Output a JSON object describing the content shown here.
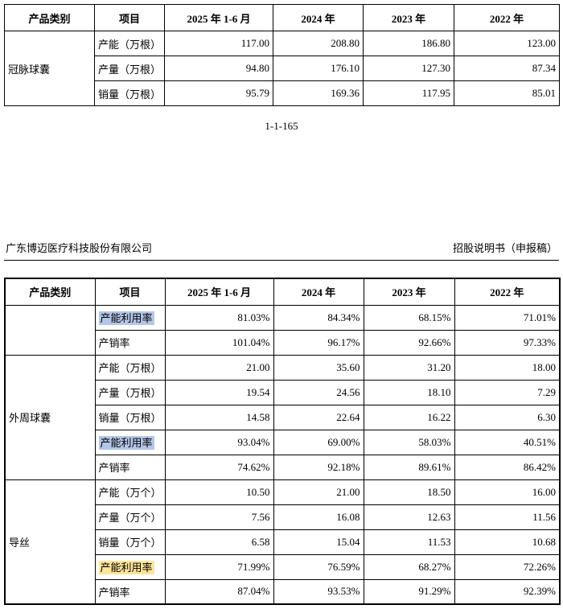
{
  "page": {
    "page_number": "1-1-165",
    "header": {
      "company": "广东博迈医疗科技股份有限公司",
      "doc_type": "招股说明书（申报稿）"
    }
  },
  "colors": {
    "highlight_blue": "#b4c6e7",
    "highlight_yellow": "#ffe599"
  },
  "tables": [
    {
      "columns": [
        "产品类别",
        "项目",
        "2025 年 1-6 月",
        "2024 年",
        "2023 年",
        "2022 年"
      ],
      "groups": [
        {
          "category": "冠脉球囊",
          "rows": [
            {
              "item": "产能（万根）",
              "values": [
                "117.00",
                "208.80",
                "186.80",
                "123.00"
              ]
            },
            {
              "item": "产量（万根）",
              "values": [
                "94.80",
                "176.10",
                "127.30",
                "87.34"
              ]
            },
            {
              "item": "销量（万根）",
              "values": [
                "95.79",
                "169.36",
                "117.95",
                "85.01"
              ]
            }
          ]
        }
      ]
    },
    {
      "columns": [
        "产品类别",
        "项目",
        "2025 年 1-6 月",
        "2024 年",
        "2023 年",
        "2022 年"
      ],
      "groups": [
        {
          "category": "",
          "rows": [
            {
              "item": "产能利用率",
              "highlight": "blue",
              "values": [
                "81.03%",
                "84.34%",
                "68.15%",
                "71.01%"
              ]
            },
            {
              "item": "产销率",
              "values": [
                "101.04%",
                "96.17%",
                "92.66%",
                "97.33%"
              ]
            }
          ]
        },
        {
          "category": "外周球囊",
          "rows": [
            {
              "item": "产能（万根）",
              "values": [
                "21.00",
                "35.60",
                "31.20",
                "18.00"
              ]
            },
            {
              "item": "产量（万根）",
              "values": [
                "19.54",
                "24.56",
                "18.10",
                "7.29"
              ]
            },
            {
              "item": "销量（万根）",
              "values": [
                "14.58",
                "22.64",
                "16.22",
                "6.30"
              ]
            },
            {
              "item": "产能利用率",
              "highlight": "blue",
              "values": [
                "93.04%",
                "69.00%",
                "58.03%",
                "40.51%"
              ]
            },
            {
              "item": "产销率",
              "values": [
                "74.62%",
                "92.18%",
                "89.61%",
                "86.42%"
              ]
            }
          ]
        },
        {
          "category": "导丝",
          "rows": [
            {
              "item": "产能（万个）",
              "values": [
                "10.50",
                "21.00",
                "18.50",
                "16.00"
              ]
            },
            {
              "item": "产量（万个）",
              "values": [
                "7.56",
                "16.08",
                "12.63",
                "11.56"
              ]
            },
            {
              "item": "销量（万个）",
              "values": [
                "6.58",
                "15.04",
                "11.53",
                "10.68"
              ]
            },
            {
              "item": "产能利用率",
              "highlight": "yellow",
              "values": [
                "71.99%",
                "76.59%",
                "68.27%",
                "72.26%"
              ]
            },
            {
              "item": "产销率",
              "values": [
                "87.04%",
                "93.53%",
                "91.29%",
                "92.39%"
              ]
            }
          ]
        }
      ]
    }
  ]
}
